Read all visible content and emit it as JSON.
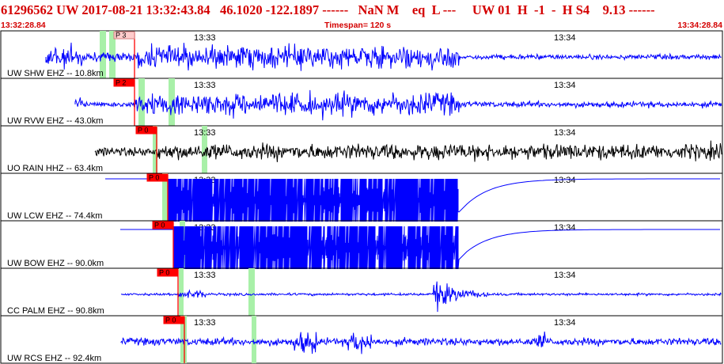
{
  "header": {
    "title": "61296562 UW 2017-08-21 13:32:43.84   46.1020 -122.1897 ------   NaN M    eq  L ---     UW 01  H  -1  -  H S4    9.13 ------",
    "start_time": "13:32:28.84",
    "timespan": "Timespan= 120 s",
    "end_time": "13:34:28.84"
  },
  "tick_labels": {
    "t1": "13:33",
    "t2": "13:34"
  },
  "colors": {
    "header_red": "#d40000",
    "trace_blue": "#0000ff",
    "trace_black": "#000000",
    "pick_red": "#ff0000",
    "pick_pale": "#ffcccc",
    "highlight_green": "#a8f0a8"
  },
  "traces": [
    {
      "label": "UW SHW EHZ -- 10.8km",
      "pick": "P 3",
      "pick_style": "pale"
    },
    {
      "label": "UW RVW EHZ -- 43.0km",
      "pick": "P 2",
      "pick_style": "red"
    },
    {
      "label": "UO RAIN HHZ -- 63.4km",
      "pick": "P 0",
      "pick_style": "red"
    },
    {
      "label": "UW LCW EHZ -- 74.4km",
      "pick": "P 0",
      "pick_style": "red"
    },
    {
      "label": "UW BOW EHZ -- 90.0km",
      "pick": "P 0",
      "pick_style": "red"
    },
    {
      "label": "CC PALM EHZ -- 90.8km",
      "pick": "P 0",
      "pick_style": "red"
    },
    {
      "label": "UW RCS EHZ -- 92.4km",
      "pick": "P 0",
      "pick_style": "red"
    }
  ]
}
